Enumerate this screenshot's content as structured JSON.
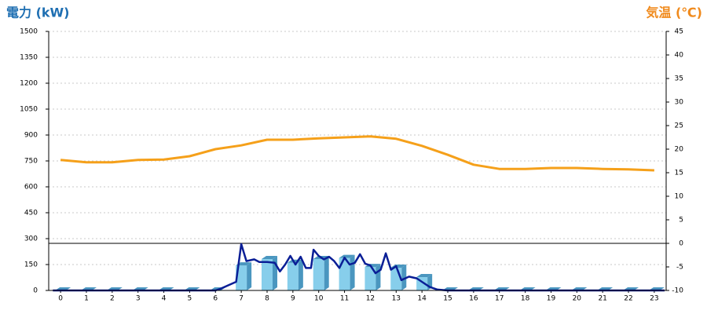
{
  "chart_data": {
    "type": "combo",
    "title": "電力 (kW)",
    "title_color": "#1f6fb2",
    "y2_title": "気温 (℃)",
    "y2_title_color": "#f08a1c",
    "x": [
      0,
      1,
      2,
      3,
      4,
      5,
      6,
      7,
      8,
      9,
      10,
      11,
      12,
      13,
      14,
      15,
      16,
      17,
      18,
      19,
      20,
      21,
      22,
      23
    ],
    "xlim": [
      -0.46,
      23.46
    ],
    "xticks": [
      0,
      1,
      2,
      3,
      4,
      5,
      6,
      7,
      8,
      9,
      10,
      11,
      12,
      13,
      14,
      15,
      16,
      17,
      18,
      19,
      20,
      21,
      22,
      23
    ],
    "ylim": [
      0,
      1500
    ],
    "yticks": [
      0,
      150,
      300,
      450,
      600,
      750,
      900,
      1050,
      1200,
      1350,
      1500
    ],
    "y2lim": [
      -10,
      45
    ],
    "y2ticks": [
      -10,
      -5,
      0,
      5,
      10,
      15,
      20,
      25,
      30,
      35,
      40,
      45
    ],
    "grid": true,
    "series": [
      {
        "type": "bar",
        "color": "#87ceeb",
        "side_color": "#4a96bf",
        "values": [
          0,
          0,
          0,
          0,
          0,
          0,
          0,
          145,
          182,
          160,
          182,
          188,
          136,
          132,
          77,
          0,
          0,
          0,
          0,
          0,
          0,
          0,
          0,
          0
        ]
      },
      {
        "type": "line",
        "axis": "y2",
        "color": "#f5a01a",
        "values": [
          17.7,
          17.2,
          17.2,
          17.7,
          17.8,
          18.5,
          20,
          20.8,
          22,
          22,
          22.3,
          22.5,
          22.7,
          22.2,
          20.7,
          18.8,
          16.7,
          15.8,
          15.8,
          16,
          16,
          15.8,
          15.7,
          15.5
        ]
      },
      {
        "type": "line",
        "color": "#0a1e96",
        "x": [
          -0.3,
          6,
          6.2,
          6.5,
          6.8,
          7,
          7.2,
          7.5,
          7.7,
          8,
          8.3,
          8.5,
          8.7,
          8.9,
          9.1,
          9.3,
          9.5,
          9.7,
          9.8,
          10,
          10.2,
          10.4,
          10.6,
          10.8,
          11,
          11.2,
          11.4,
          11.6,
          11.8,
          12,
          12.2,
          12.4,
          12.6,
          12.8,
          13,
          13.2,
          13.5,
          13.8,
          14,
          14.3,
          14.6,
          15,
          23.4
        ],
        "values": [
          0,
          0,
          10,
          30,
          50,
          268,
          170,
          180,
          165,
          165,
          160,
          110,
          150,
          200,
          150,
          195,
          130,
          130,
          236,
          200,
          180,
          195,
          170,
          130,
          190,
          150,
          160,
          210,
          155,
          145,
          100,
          120,
          215,
          120,
          140,
          60,
          80,
          70,
          50,
          20,
          5,
          0,
          0
        ]
      }
    ]
  }
}
